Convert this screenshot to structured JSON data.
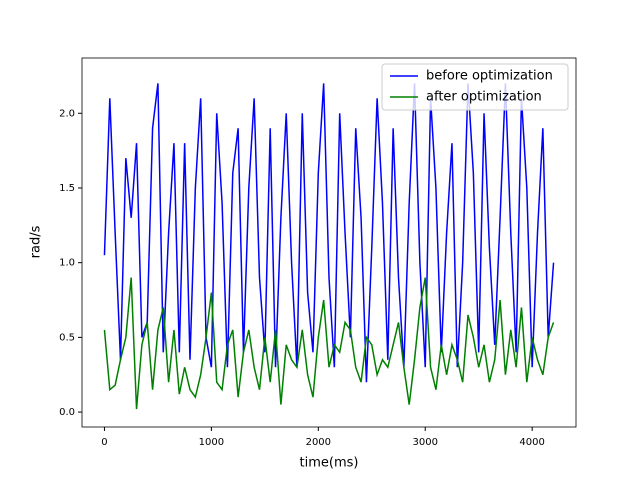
{
  "chart_data": {
    "type": "line",
    "x_label": "time(ms)",
    "y_label": "rad/s",
    "x": [
      0,
      50,
      100,
      150,
      200,
      250,
      300,
      350,
      400,
      450,
      500,
      550,
      600,
      650,
      700,
      750,
      800,
      850,
      900,
      950,
      1000,
      1050,
      1100,
      1150,
      1200,
      1250,
      1300,
      1350,
      1400,
      1450,
      1500,
      1550,
      1600,
      1650,
      1700,
      1750,
      1800,
      1850,
      1900,
      1950,
      2000,
      2050,
      2100,
      2150,
      2200,
      2250,
      2300,
      2350,
      2400,
      2450,
      2500,
      2550,
      2600,
      2650,
      2700,
      2750,
      2800,
      2850,
      2900,
      2950,
      3000,
      3050,
      3100,
      3150,
      3200,
      3250,
      3300,
      3350,
      3400,
      3450,
      3500,
      3550,
      3600,
      3650,
      3700,
      3750,
      3800,
      3850,
      3900,
      3950,
      4000,
      4050,
      4100,
      4150,
      4200
    ],
    "series": [
      {
        "name": "before optimization",
        "color": "#0000ff",
        "values": [
          1.05,
          2.1,
          1.2,
          0.35,
          1.7,
          1.3,
          1.8,
          0.5,
          0.6,
          1.9,
          2.2,
          0.4,
          1.2,
          1.8,
          0.4,
          1.8,
          0.35,
          1.5,
          2.1,
          0.5,
          0.3,
          2.0,
          1.4,
          0.3,
          1.6,
          1.9,
          0.4,
          1.5,
          2.1,
          0.9,
          0.4,
          1.9,
          0.3,
          1.3,
          2.0,
          1.0,
          0.3,
          2.0,
          0.8,
          0.4,
          1.6,
          2.2,
          0.9,
          0.3,
          2.0,
          1.2,
          0.5,
          1.9,
          1.3,
          0.2,
          1.1,
          2.1,
          1.4,
          0.35,
          1.9,
          0.9,
          0.3,
          1.4,
          2.2,
          1.0,
          0.3,
          2.1,
          1.5,
          0.4,
          1.2,
          1.8,
          0.3,
          1.0,
          2.2,
          1.6,
          0.4,
          2.0,
          1.1,
          0.45,
          1.3,
          2.2,
          1.2,
          0.4,
          2.1,
          1.5,
          0.3,
          1.2,
          1.9,
          0.5,
          1.0
        ]
      },
      {
        "name": "after optimization",
        "color": "#008000",
        "values": [
          0.55,
          0.15,
          0.18,
          0.35,
          0.5,
          0.9,
          0.02,
          0.45,
          0.6,
          0.15,
          0.55,
          0.7,
          0.2,
          0.55,
          0.12,
          0.3,
          0.15,
          0.1,
          0.25,
          0.5,
          0.8,
          0.2,
          0.15,
          0.45,
          0.55,
          0.1,
          0.4,
          0.55,
          0.3,
          0.15,
          0.5,
          0.2,
          0.55,
          0.05,
          0.45,
          0.35,
          0.3,
          0.55,
          0.25,
          0.1,
          0.5,
          0.75,
          0.3,
          0.45,
          0.4,
          0.6,
          0.55,
          0.3,
          0.2,
          0.5,
          0.45,
          0.25,
          0.35,
          0.3,
          0.45,
          0.6,
          0.3,
          0.05,
          0.35,
          0.7,
          0.9,
          0.3,
          0.15,
          0.45,
          0.25,
          0.45,
          0.35,
          0.2,
          0.65,
          0.5,
          0.3,
          0.45,
          0.2,
          0.35,
          0.75,
          0.25,
          0.55,
          0.3,
          0.7,
          0.2,
          0.5,
          0.35,
          0.25,
          0.5,
          0.6
        ]
      }
    ],
    "xlim": [
      -210,
      4410
    ],
    "xticks": [
      0,
      1000,
      2000,
      3000,
      4000
    ],
    "ylim": [
      -0.1,
      2.37
    ],
    "yticks": [
      {
        "value": 0,
        "label": "0.0"
      },
      {
        "value": 0.5,
        "label": "0.5"
      },
      {
        "value": 1,
        "label": "1.0"
      },
      {
        "value": 1.5,
        "label": "1.5"
      },
      {
        "value": 2,
        "label": "2.0"
      }
    ],
    "legend": "upper right",
    "grid": false
  }
}
